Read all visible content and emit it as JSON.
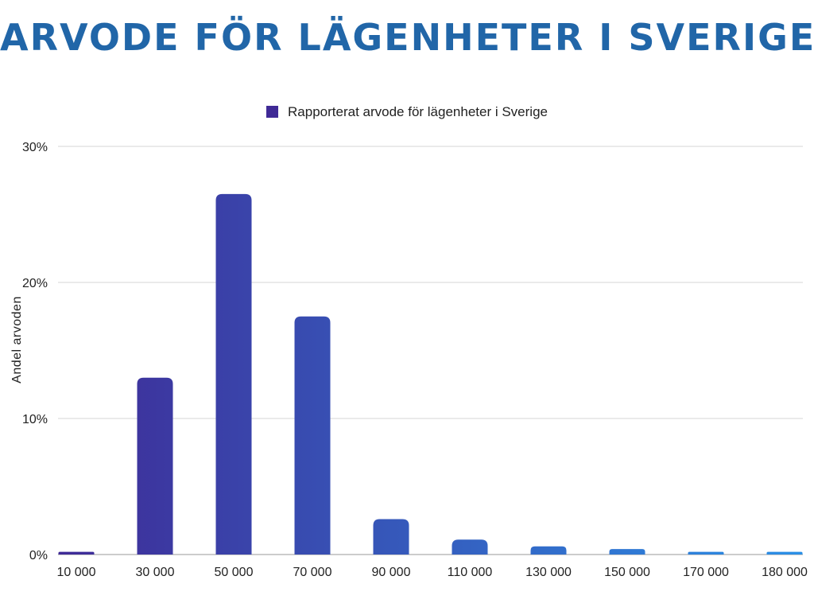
{
  "title": "ARVODE FÖR LÄGENHETER I SVERIGE",
  "colors": {
    "title": "#2166a8",
    "bar_start": "#3f2a96",
    "bar_end": "#2b90e6",
    "grid": "#d6d6d6",
    "axis": "#999999"
  },
  "chart_data": {
    "type": "bar",
    "title": "ARVODE FÖR LÄGENHETER I SVERIGE",
    "xlabel": "",
    "ylabel": "Andel arvoden",
    "categories": [
      "10 000",
      "30 000",
      "50 000",
      "70 000",
      "90 000",
      "110 000",
      "130 000",
      "150 000",
      "170 000",
      "180 000"
    ],
    "series": [
      {
        "name": "Rapporterat arvode för lägenheter i Sverige",
        "values": [
          0.2,
          13.0,
          26.5,
          17.5,
          2.6,
          1.1,
          0.6,
          0.4,
          0.2,
          0.2
        ]
      }
    ],
    "ylim": [
      0,
      30
    ],
    "yticks": [
      {
        "value": 0,
        "label": "0%"
      },
      {
        "value": 10,
        "label": "10%"
      },
      {
        "value": 20,
        "label": "20%"
      },
      {
        "value": 30,
        "label": "30%"
      }
    ],
    "grid": true,
    "legend_position": "top-center"
  }
}
